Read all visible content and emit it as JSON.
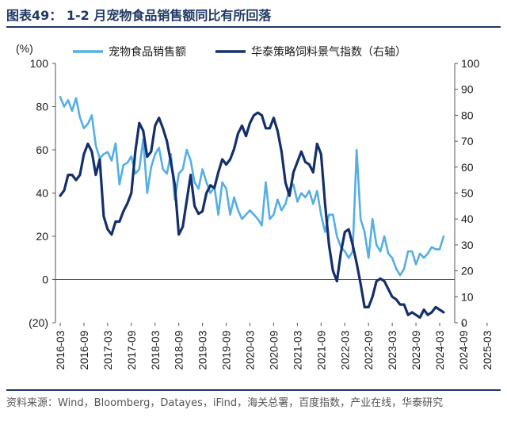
{
  "figure": {
    "title": "图表49： 1-2 月宠物食品销售额同比有所回落",
    "source": "资料来源：Wind，Bloomberg，Datayes，iFind，海关总署，百度指数，产业在线，华泰研究"
  },
  "colors": {
    "series_light": "#55aee4",
    "series_dark": "#142f6b",
    "title": "#1f3864",
    "axis": "#555555"
  },
  "chart_data": {
    "type": "line",
    "left_axis_unit": "(%)",
    "left_axis": {
      "ylim": [
        -20,
        100
      ],
      "ticks": [
        -20,
        0,
        20,
        40,
        60,
        80,
        100
      ],
      "tick_labels": [
        "(20)",
        "0",
        "20",
        "40",
        "60",
        "80",
        "100"
      ]
    },
    "right_axis": {
      "ylim": [
        0,
        100
      ],
      "ticks": [
        0,
        10,
        20,
        30,
        40,
        50,
        60,
        70,
        80,
        90,
        100
      ],
      "tick_labels": [
        "0",
        "10",
        "20",
        "30",
        "40",
        "50",
        "60",
        "70",
        "80",
        "90",
        "100"
      ]
    },
    "x_tick_labels": [
      "2016-03",
      "2016-09",
      "2017-03",
      "2017-09",
      "2018-03",
      "2018-09",
      "2019-03",
      "2019-09",
      "2020-03",
      "2020-09",
      "2021-03",
      "2021-09",
      "2022-03",
      "2022-09",
      "2023-03",
      "2023-09",
      "2024-03",
      "2024-09",
      "2025-03"
    ],
    "x_start": "2016-03",
    "grid": false,
    "legend_position": "top",
    "series": [
      {
        "name": "宠物食品销售额",
        "axis": "left",
        "color": "#55aee4",
        "values": [
          84.5,
          80,
          83,
          78,
          84,
          75,
          70,
          72,
          76,
          62,
          56,
          58,
          59,
          55,
          63,
          44,
          53,
          54,
          57,
          49,
          51,
          65,
          40,
          52,
          58,
          61,
          51,
          49,
          58,
          37,
          49,
          51,
          60,
          55,
          45,
          42,
          51,
          45,
          40,
          43,
          30,
          45,
          42,
          30,
          38,
          32,
          28,
          30,
          32,
          30,
          28,
          25,
          45,
          28,
          30,
          37,
          32,
          35,
          42,
          44,
          36,
          40,
          38,
          41,
          35,
          41,
          30,
          22,
          30,
          30,
          20,
          15,
          13,
          10,
          13,
          60,
          28,
          22,
          10,
          28,
          16,
          13,
          20,
          12,
          10,
          5,
          2,
          5,
          13,
          13,
          7,
          12,
          10,
          12,
          15,
          14,
          14,
          20
        ]
      },
      {
        "name": "华泰策略饲料景气指数（右轴）",
        "axis": "right",
        "color": "#142f6b",
        "values": [
          49,
          51,
          57,
          57,
          55,
          57,
          65,
          69,
          66,
          57,
          63,
          41,
          36,
          34,
          39,
          39,
          43,
          46,
          50,
          66,
          77,
          74,
          64,
          66,
          76,
          79,
          75,
          70,
          62,
          53,
          34,
          37,
          47,
          57,
          45,
          42,
          43,
          50,
          53,
          52,
          58,
          63,
          61,
          63,
          67,
          73,
          76,
          72,
          77,
          80,
          81,
          80,
          75,
          75,
          79,
          74,
          66,
          54,
          49,
          58,
          62,
          66,
          62,
          61,
          58,
          69,
          65,
          46,
          30,
          20,
          16,
          27,
          35,
          36,
          30,
          23,
          15,
          6,
          6,
          10,
          16,
          17,
          16,
          13,
          10,
          9,
          7,
          7,
          3,
          4,
          3,
          2,
          5,
          3,
          4,
          6,
          5,
          4
        ]
      }
    ]
  }
}
